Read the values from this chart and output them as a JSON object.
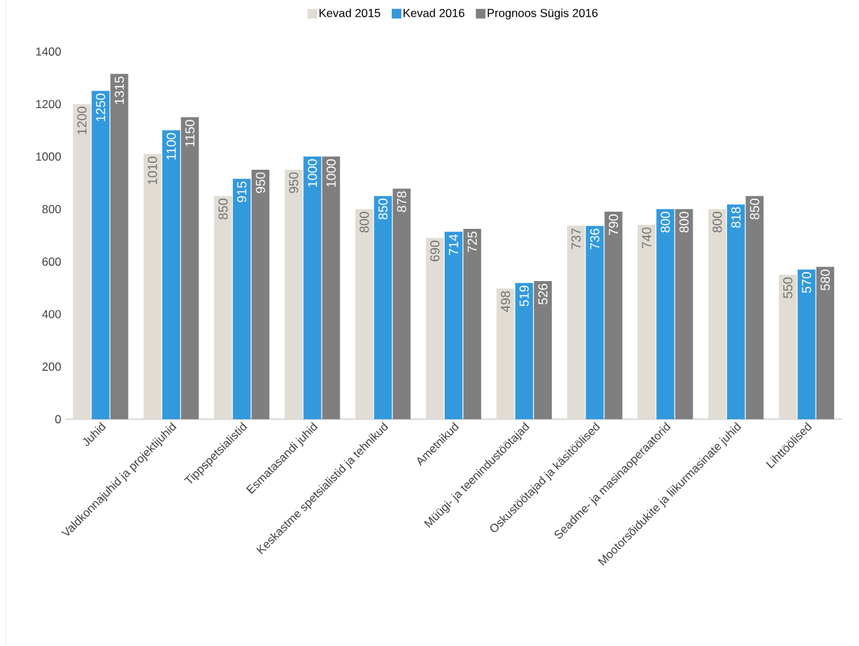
{
  "chart_data": {
    "type": "bar",
    "categories": [
      "Juhid",
      "Valdkonnajuhid ja projektijuhid",
      "Tippspetsialistid",
      "Esmatasandi juhid",
      "Keskastme spetsialistid ja tehnikud",
      "Ametnikud",
      "Müügi- ja teenindustöötajad",
      "Oskustöötajad ja käsitöölised",
      "Seadme- ja masinaoperaatorid",
      "Mootorsõidukite ja liikurmasinate juhid",
      "Lihttöölised"
    ],
    "series": [
      {
        "name": "Kevad 2015",
        "color": "#e1ddd4",
        "values": [
          1200,
          1010,
          850,
          950,
          800,
          690,
          498,
          737,
          740,
          800,
          550
        ]
      },
      {
        "name": "Kevad 2016",
        "color": "#3399dd",
        "values": [
          1250,
          1100,
          915,
          1000,
          850,
          714,
          519,
          736,
          800,
          818,
          570
        ]
      },
      {
        "name": "Prognoos Sügis 2016",
        "color": "#7f7f7f",
        "values": [
          1315,
          1150,
          950,
          1000,
          878,
          725,
          526,
          790,
          800,
          850,
          580
        ]
      }
    ],
    "ylim": [
      0,
      1400
    ],
    "yticks": [
      0,
      200,
      400,
      600,
      800,
      1000,
      1200,
      1400
    ],
    "data_labels": true,
    "legend": "top",
    "grid": false
  }
}
